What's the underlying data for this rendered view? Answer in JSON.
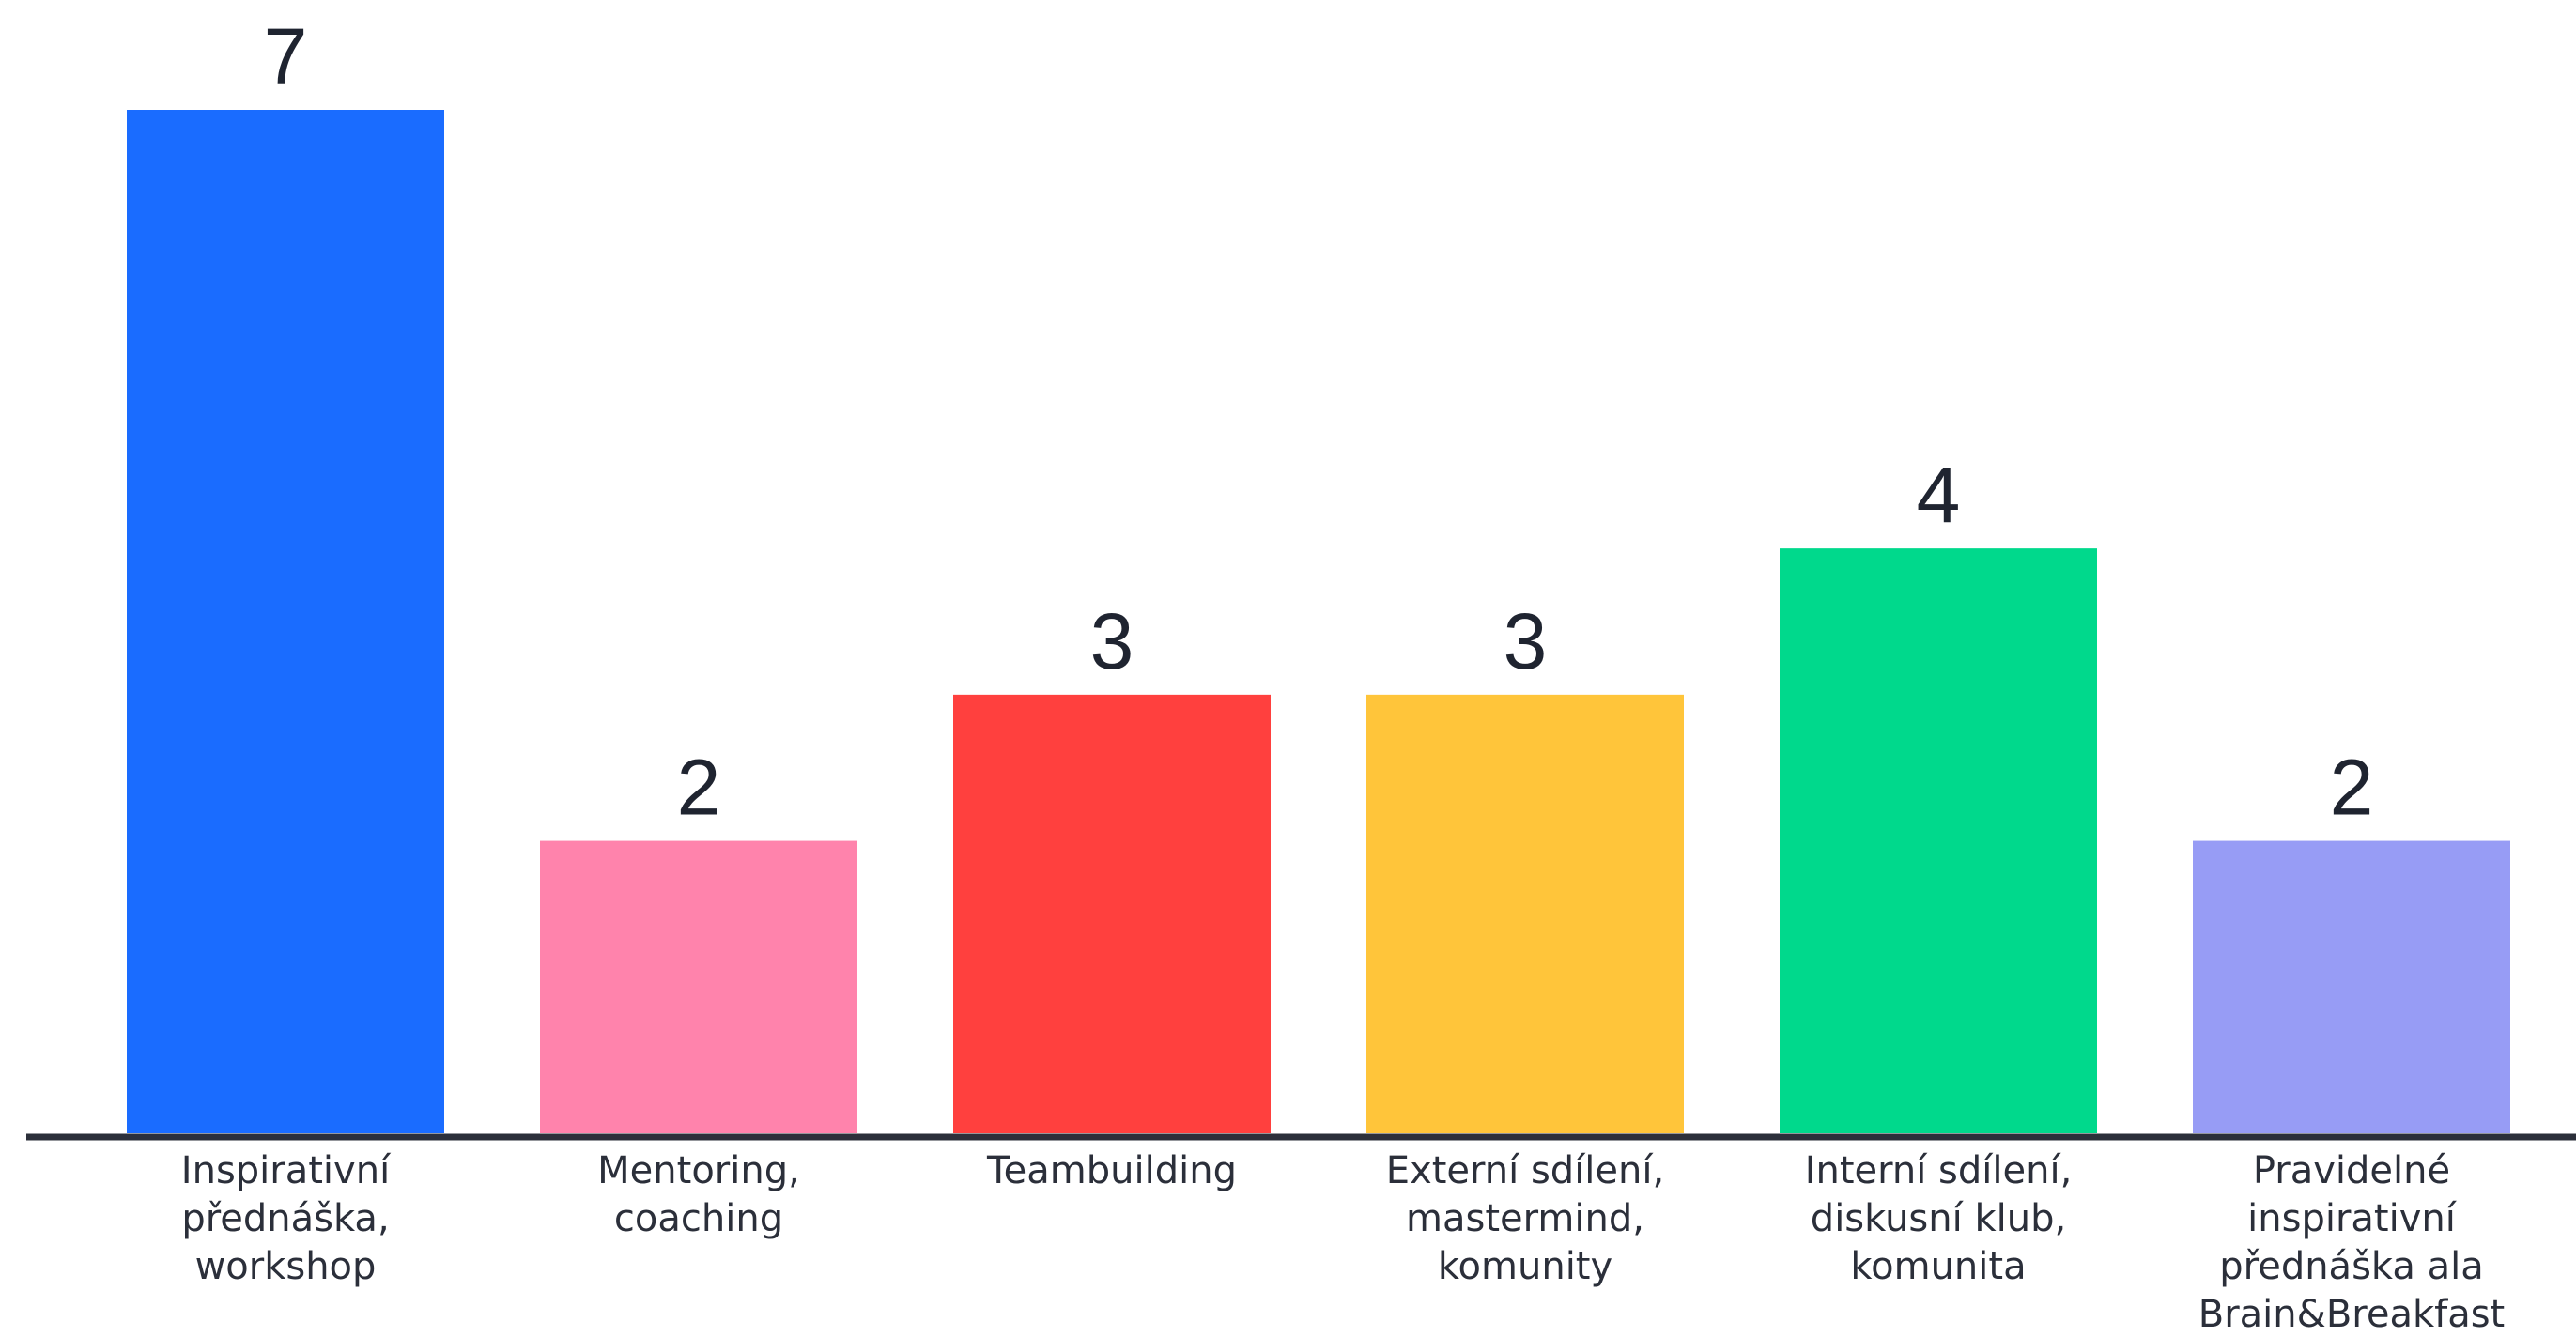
{
  "chart_data": {
    "type": "bar",
    "title": "",
    "xlabel": "",
    "ylabel": "",
    "ylim": [
      0,
      7
    ],
    "grid": false,
    "legend": "none",
    "categories": [
      "Inspirativní přednáška, workshop",
      "Mentoring, coaching",
      "Teambuilding",
      "Externí sdílení, mastermind, komunity",
      "Interní sdílení, diskusní klub, komunita",
      "Pravidelné inspirativní přednáška ala Brain&Breakfast"
    ],
    "category_lines": [
      [
        "Inspirativní",
        "přednáška,",
        "workshop"
      ],
      [
        "Mentoring,",
        "coaching"
      ],
      [
        "Teambuilding"
      ],
      [
        "Externí sdílení,",
        "mastermind,",
        "komunity"
      ],
      [
        "Interní sdílení,",
        "diskusní klub,",
        "komunita"
      ],
      [
        "Pravidelné",
        "inspirativní",
        "přednáška ala",
        "Brain&Breakfast"
      ]
    ],
    "values": [
      7,
      2,
      3,
      3,
      4,
      2
    ],
    "colors": [
      "#1a6cff",
      "#ff83ac",
      "#ff403e",
      "#ffc53a",
      "#00d98c",
      "#979cf5"
    ],
    "axis_color": "#2b2f3a"
  }
}
